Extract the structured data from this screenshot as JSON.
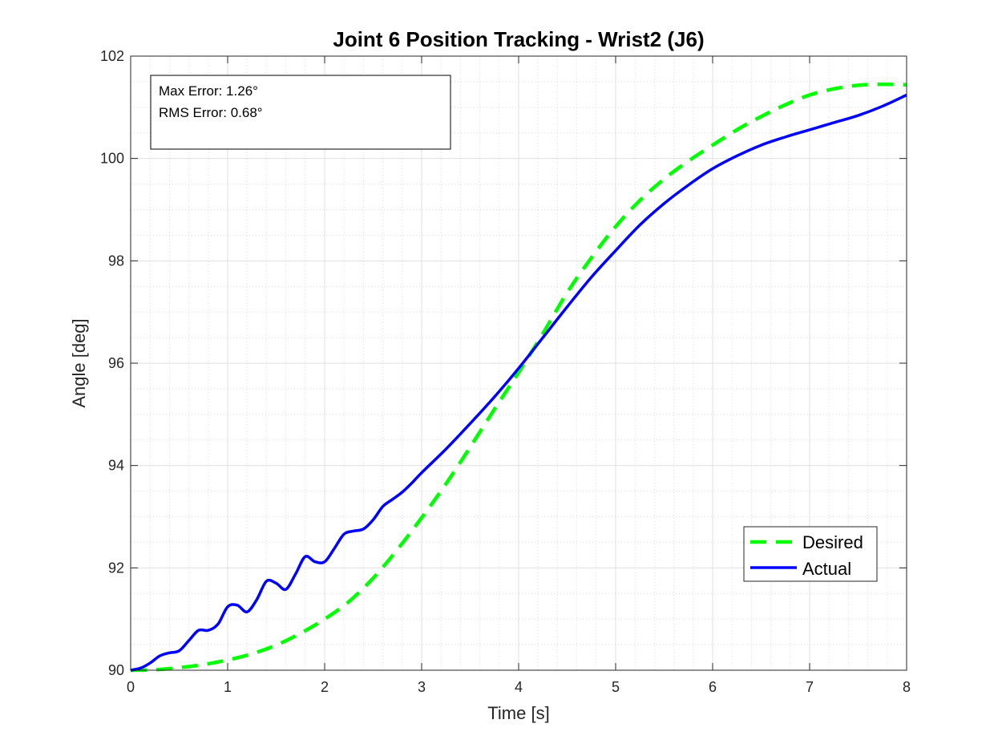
{
  "chart_data": {
    "type": "line",
    "title": "Joint 6 Position Tracking - Wrist2 (J6)",
    "xlabel": "Time [s]",
    "ylabel": "Angle [deg]",
    "xlim": [
      0,
      8
    ],
    "ylim": [
      90,
      102
    ],
    "xticks": [
      0,
      1,
      2,
      3,
      4,
      5,
      6,
      7,
      8
    ],
    "yticks": [
      90,
      92,
      94,
      96,
      98,
      100,
      102
    ],
    "grid": true,
    "minor_grid": true,
    "legend_position": "bottom-right",
    "annotation": {
      "lines": [
        "Max Error: 1.26°",
        "RMS Error: 0.68°"
      ],
      "position": "top-left"
    },
    "series": [
      {
        "name": "Desired",
        "color": "#00ff00",
        "style": "dashed",
        "x": [
          0,
          0.25,
          0.5,
          0.75,
          1,
          1.25,
          1.5,
          1.75,
          2,
          2.25,
          2.5,
          2.75,
          3,
          3.25,
          3.5,
          3.75,
          4,
          4.25,
          4.5,
          4.75,
          5,
          5.25,
          5.5,
          5.75,
          6,
          6.25,
          6.5,
          6.75,
          7,
          7.25,
          7.5,
          7.75,
          8
        ],
        "y": [
          90.0,
          90.01,
          90.05,
          90.11,
          90.2,
          90.32,
          90.49,
          90.72,
          91.0,
          91.34,
          91.8,
          92.36,
          92.98,
          93.64,
          94.36,
          95.1,
          95.82,
          96.58,
          97.38,
          98.06,
          98.67,
          99.18,
          99.6,
          99.95,
          100.26,
          100.56,
          100.82,
          101.05,
          101.24,
          101.36,
          101.43,
          101.45,
          101.44
        ]
      },
      {
        "name": "Actual",
        "color": "#0000ff",
        "style": "solid",
        "x": [
          0,
          0.1,
          0.2,
          0.3,
          0.4,
          0.5,
          0.6,
          0.7,
          0.8,
          0.9,
          1.0,
          1.1,
          1.2,
          1.3,
          1.4,
          1.5,
          1.6,
          1.7,
          1.8,
          1.9,
          2.0,
          2.1,
          2.2,
          2.3,
          2.4,
          2.5,
          2.6,
          2.7,
          2.8,
          2.9,
          3.0,
          3.25,
          3.5,
          3.75,
          4.0,
          4.25,
          4.5,
          4.75,
          5.0,
          5.25,
          5.5,
          5.75,
          6.0,
          6.25,
          6.5,
          6.75,
          7.0,
          7.25,
          7.5,
          7.75,
          8.0
        ],
        "y": [
          90.0,
          90.04,
          90.14,
          90.28,
          90.34,
          90.38,
          90.58,
          90.78,
          90.78,
          90.9,
          91.24,
          91.27,
          91.14,
          91.38,
          91.74,
          91.7,
          91.58,
          91.88,
          92.22,
          92.12,
          92.12,
          92.38,
          92.66,
          92.72,
          92.76,
          92.94,
          93.2,
          93.34,
          93.48,
          93.66,
          93.86,
          94.32,
          94.82,
          95.34,
          95.9,
          96.5,
          97.1,
          97.68,
          98.2,
          98.7,
          99.12,
          99.48,
          99.8,
          100.05,
          100.26,
          100.42,
          100.56,
          100.7,
          100.84,
          101.02,
          101.24
        ]
      }
    ]
  }
}
